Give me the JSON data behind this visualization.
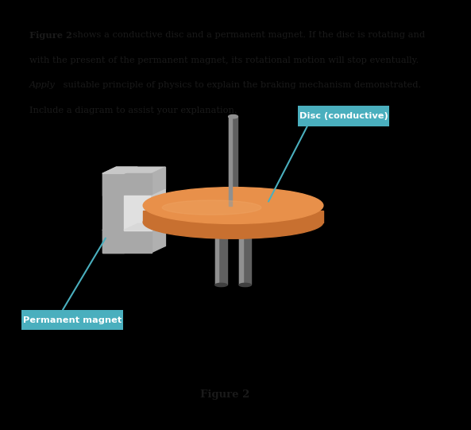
{
  "bg_color": "#ffffff",
  "outer_bg": "#000000",
  "fig_width": 5.93,
  "fig_height": 5.41,
  "figure_label": "Figure 2",
  "disc_label": "Disc (conductive)",
  "magnet_label": "Permanent magnet",
  "disc_color_top": "#E8904A",
  "disc_color_side": "#C87030",
  "disc_color_edge": "#A85020",
  "magnet_front": "#A8A8A8",
  "magnet_side": "#787878",
  "magnet_top": "#C8C8C8",
  "magnet_inner": "#E0E0E0",
  "shaft_color": "#606060",
  "shaft_light": "#909090",
  "label_bg_color": "#4AAFBE",
  "label_text_color": "#ffffff",
  "text_color": "#1a1a1a"
}
